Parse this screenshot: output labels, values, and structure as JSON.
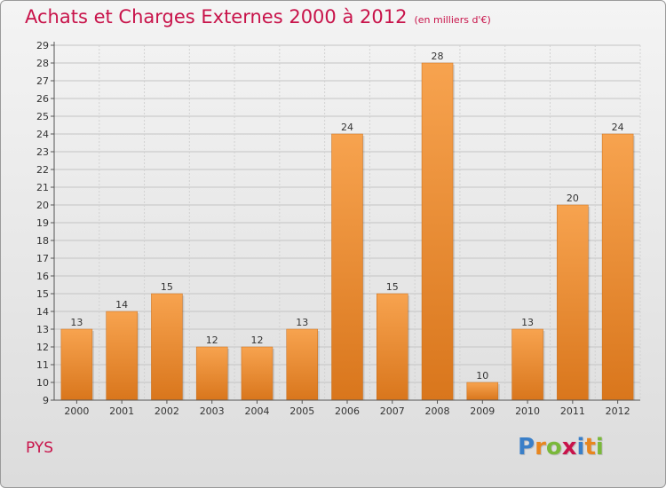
{
  "header": {
    "title": "Achats et Charges Externes 2000 à 2012",
    "subtitle": "(en milliers d'€)"
  },
  "footer": {
    "commune": "PYS",
    "logo_letters": [
      {
        "char": "P",
        "color": "#3a7fc8"
      },
      {
        "char": "r",
        "color": "#e8861e"
      },
      {
        "char": "o",
        "color": "#7ab83a"
      },
      {
        "char": "x",
        "color": "#c8134a"
      },
      {
        "char": "i",
        "color": "#3a7fc8"
      },
      {
        "char": "t",
        "color": "#e8861e"
      },
      {
        "char": "i",
        "color": "#7ab83a"
      }
    ]
  },
  "colors": {
    "accent": "#c8134a",
    "bar_light": "#f7a34f",
    "bar_dark": "#d9761c"
  },
  "chart_data": {
    "type": "bar",
    "categories": [
      "2000",
      "2001",
      "2002",
      "2003",
      "2004",
      "2005",
      "2006",
      "2007",
      "2008",
      "2009",
      "2010",
      "2011",
      "2012"
    ],
    "values": [
      13,
      14,
      15,
      12,
      12,
      13,
      24,
      15,
      28,
      10,
      13,
      20,
      24
    ],
    "ylim": [
      9,
      29
    ],
    "yticks": [
      9,
      10,
      11,
      12,
      13,
      14,
      15,
      16,
      17,
      18,
      19,
      20,
      21,
      22,
      23,
      24,
      25,
      26,
      27,
      28,
      29
    ],
    "grid": true,
    "xlabel": "",
    "ylabel": ""
  }
}
